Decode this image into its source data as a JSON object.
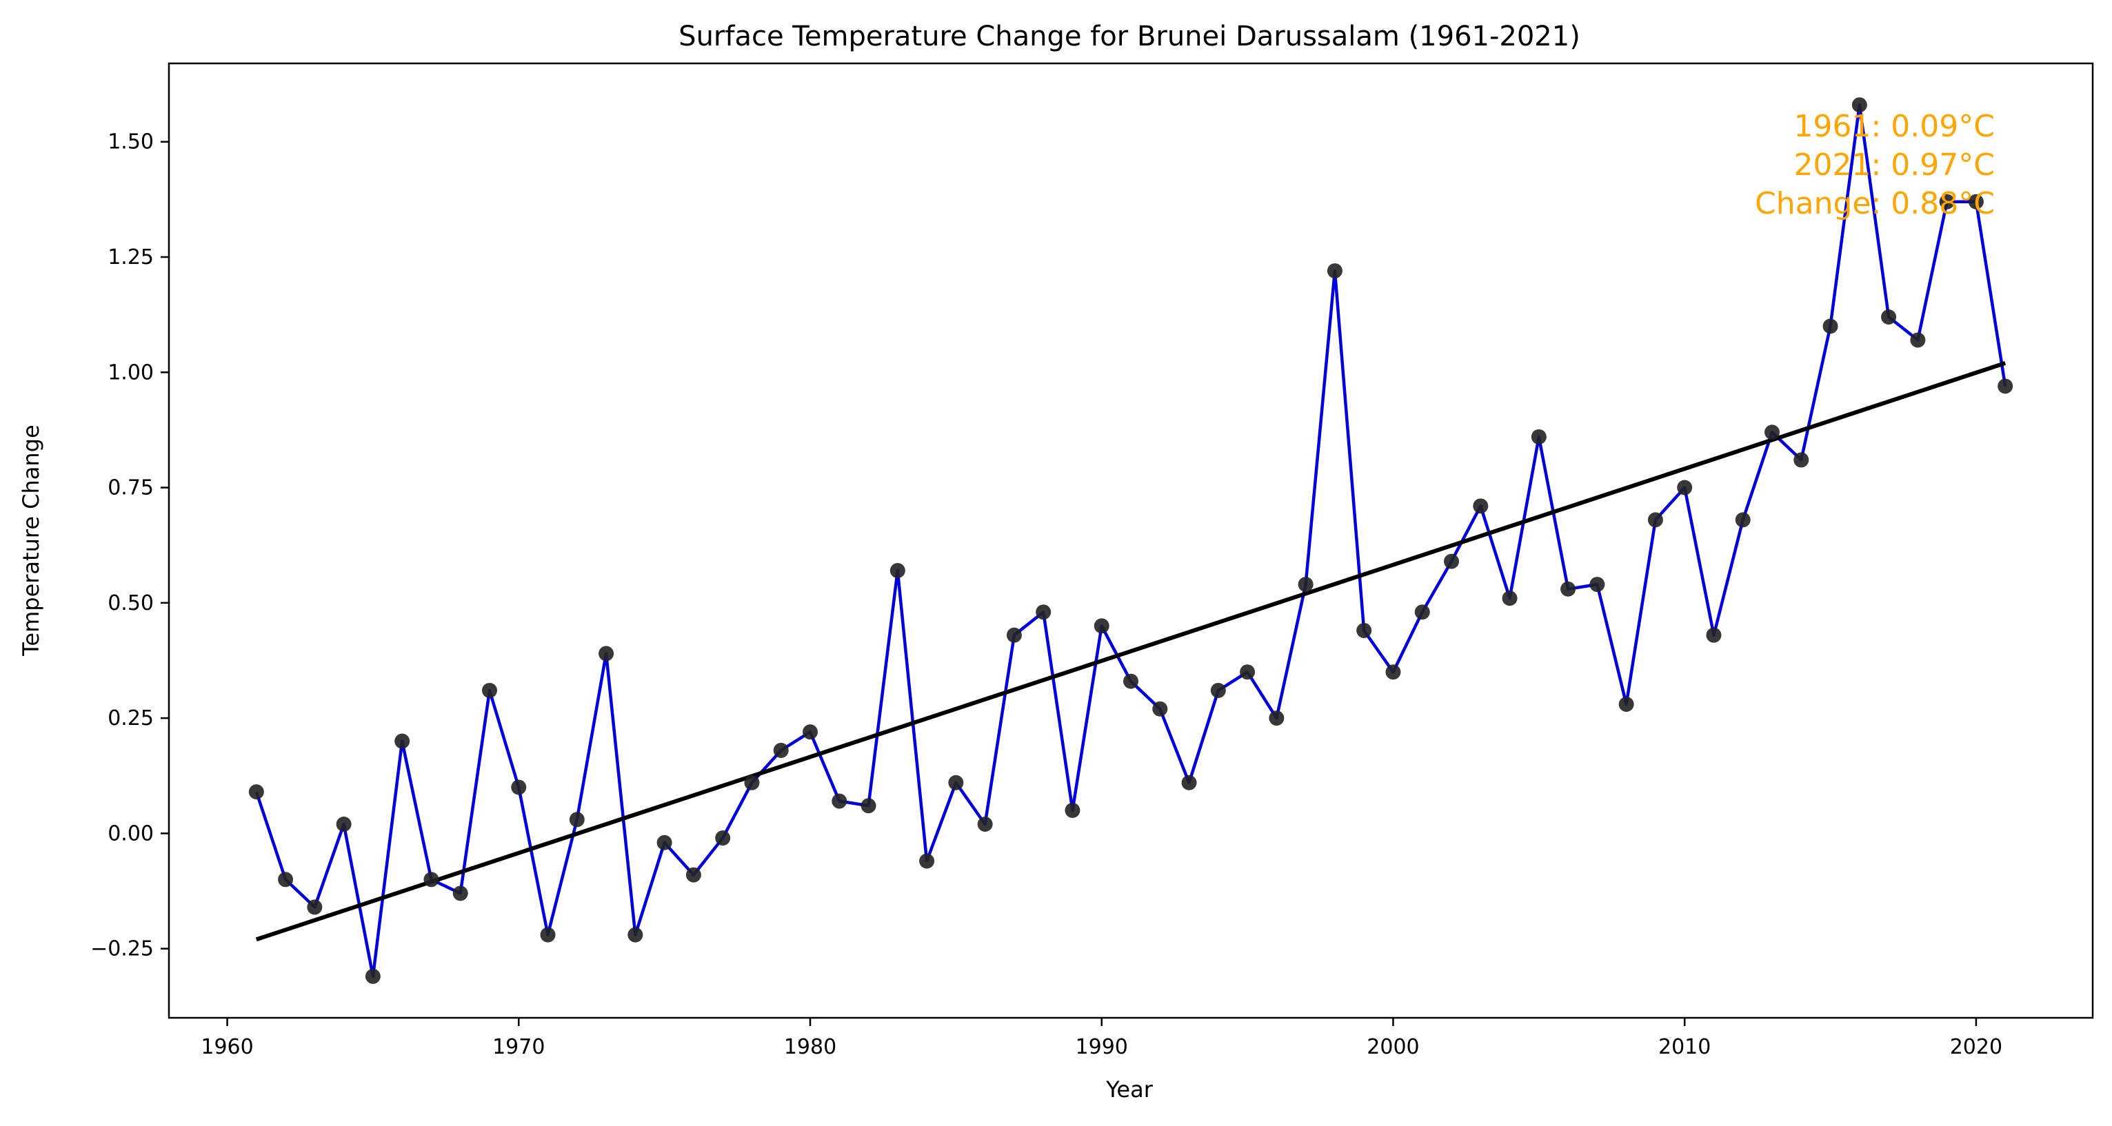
{
  "chart_data": {
    "type": "line",
    "title": "Surface Temperature Change for Brunei Darussalam (1961-2021)",
    "xlabel": "Year",
    "ylabel": "Temperature Change",
    "xlim": [
      1958,
      2024
    ],
    "ylim": [
      -0.4,
      1.67
    ],
    "grid": false,
    "legend": "none",
    "x_ticks": [
      {
        "value": 1960,
        "label": "1960"
      },
      {
        "value": 1970,
        "label": "1970"
      },
      {
        "value": 1980,
        "label": "1980"
      },
      {
        "value": 1990,
        "label": "1990"
      },
      {
        "value": 2000,
        "label": "2000"
      },
      {
        "value": 2010,
        "label": "2010"
      },
      {
        "value": 2020,
        "label": "2020"
      }
    ],
    "y_ticks": [
      {
        "value": -0.25,
        "label": "−0.25"
      },
      {
        "value": 0,
        "label": "0.00"
      },
      {
        "value": 0.25,
        "label": "0.25"
      },
      {
        "value": 0.5,
        "label": "0.50"
      },
      {
        "value": 0.75,
        "label": "0.75"
      },
      {
        "value": 1.0,
        "label": "1.00"
      },
      {
        "value": 1.25,
        "label": "1.25"
      },
      {
        "value": 1.5,
        "label": "1.50"
      }
    ],
    "series": [
      {
        "line_color": "#0000dd",
        "marker_color": "#222222",
        "x": [
          1961,
          1962,
          1963,
          1964,
          1965,
          1966,
          1967,
          1968,
          1969,
          1970,
          1971,
          1972,
          1973,
          1974,
          1975,
          1976,
          1977,
          1978,
          1979,
          1980,
          1981,
          1982,
          1983,
          1984,
          1985,
          1986,
          1987,
          1988,
          1989,
          1990,
          1991,
          1992,
          1993,
          1994,
          1995,
          1996,
          1997,
          1998,
          1999,
          2000,
          2001,
          2002,
          2003,
          2004,
          2005,
          2006,
          2007,
          2008,
          2009,
          2010,
          2011,
          2012,
          2013,
          2014,
          2015,
          2016,
          2017,
          2018,
          2019,
          2020,
          2021
        ],
        "values": [
          0.09,
          -0.1,
          -0.16,
          0.02,
          -0.31,
          0.2,
          -0.1,
          -0.13,
          0.31,
          0.1,
          -0.22,
          0.03,
          0.39,
          -0.22,
          -0.02,
          -0.09,
          -0.01,
          0.11,
          0.18,
          0.22,
          0.07,
          0.06,
          0.57,
          -0.06,
          0.11,
          0.02,
          0.43,
          0.48,
          0.05,
          0.45,
          0.33,
          0.27,
          0.11,
          0.31,
          0.35,
          0.25,
          0.54,
          1.22,
          0.44,
          0.35,
          0.48,
          0.59,
          0.71,
          0.51,
          0.86,
          0.53,
          0.54,
          0.28,
          0.68,
          0.75,
          0.43,
          0.68,
          0.87,
          0.81,
          1.1,
          1.58,
          1.12,
          1.07,
          1.37,
          1.37,
          0.97
        ]
      }
    ],
    "trendline": {
      "color": "#000000",
      "x": [
        1961,
        2021
      ],
      "values": [
        -0.23,
        1.02
      ]
    },
    "annotation": {
      "color": "#ffa500",
      "lines": [
        "1961: 0.09°C",
        "2021: 0.97°C",
        "Change: 0.88°C"
      ]
    }
  }
}
